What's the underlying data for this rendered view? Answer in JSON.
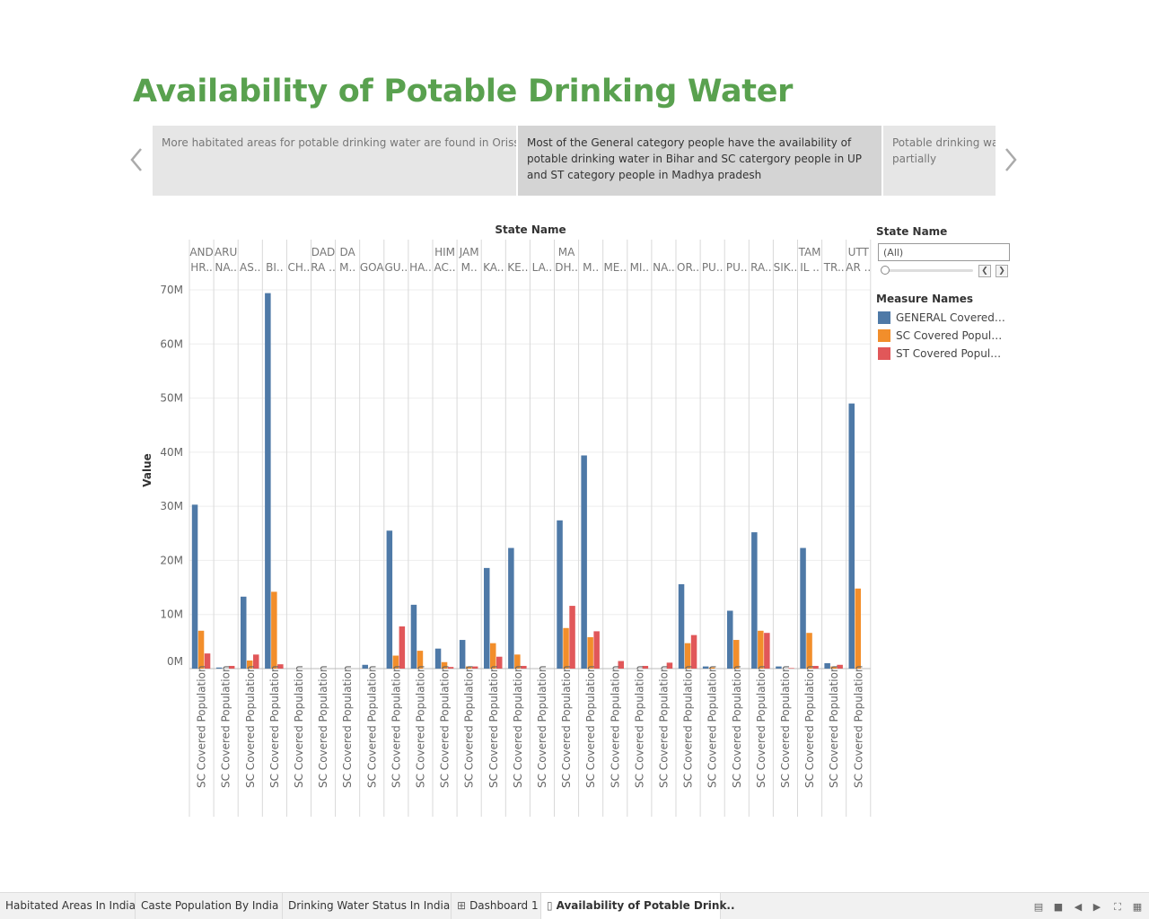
{
  "title": "Availability of Potable Drinking Water",
  "story": {
    "points": [
      "More habitated areas for potable drinking water are found in Orissa",
      "Most of the General category people have the availability of potable drinking water in Bihar and SC catergory people in UP and ST category people in Madhya pradesh",
      "Potable drinking water is available to most of the people and partially"
    ],
    "active_index": 1
  },
  "filter": {
    "title": "State Name",
    "value": "(All)"
  },
  "legend": {
    "title": "Measure Names",
    "items": [
      {
        "label": "GENERAL Covered Population",
        "color": "#4e79a7"
      },
      {
        "label": "SC Covered Population",
        "color": "#f28e2b"
      },
      {
        "label": "ST Covered Population",
        "color": "#e15759"
      }
    ]
  },
  "chart_data": {
    "type": "bar",
    "column_header": "State Name",
    "ylabel": "Value",
    "ylim": [
      0,
      72000000
    ],
    "yticks": [
      {
        "v": 0,
        "label": "0M"
      },
      {
        "v": 10000000,
        "label": "10M"
      },
      {
        "v": 20000000,
        "label": "20M"
      },
      {
        "v": 30000000,
        "label": "30M"
      },
      {
        "v": 40000000,
        "label": "40M"
      },
      {
        "v": 50000000,
        "label": "50M"
      },
      {
        "v": 60000000,
        "label": "60M"
      },
      {
        "v": 70000000,
        "label": "70M"
      }
    ],
    "category_header_lines": [
      [
        "AND",
        "HR.."
      ],
      [
        "ARU",
        "NA.."
      ],
      [
        "",
        "AS.."
      ],
      [
        "",
        "BI.."
      ],
      [
        "",
        "CH.."
      ],
      [
        "DAD",
        "RA .."
      ],
      [
        "DA",
        "M.."
      ],
      [
        "",
        "GOA"
      ],
      [
        "",
        "GU.."
      ],
      [
        "",
        "HA.."
      ],
      [
        "HIM",
        "AC.."
      ],
      [
        "JAM",
        "M.."
      ],
      [
        "",
        "KA.."
      ],
      [
        "",
        "KE.."
      ],
      [
        "",
        "LA.."
      ],
      [
        "MA",
        "DH.."
      ],
      [
        "",
        "M.."
      ],
      [
        "",
        "ME.."
      ],
      [
        "",
        "MI.."
      ],
      [
        "",
        "NA.."
      ],
      [
        "",
        "OR.."
      ],
      [
        "",
        "PU.."
      ],
      [
        "",
        "PU.."
      ],
      [
        "",
        "RA.."
      ],
      [
        "",
        "SIK.."
      ],
      [
        "TAM",
        "IL .."
      ],
      [
        "",
        "TR.."
      ],
      [
        "UTT",
        "AR .."
      ]
    ],
    "row_label": "SC Covered Population",
    "series": [
      {
        "name": "GENERAL Covered Population",
        "color": "#4e79a7",
        "values": [
          30300000,
          200000,
          13300000,
          69400000,
          0,
          0,
          0,
          700000,
          25500000,
          11800000,
          3700000,
          5300000,
          18600000,
          22300000,
          0,
          27400000,
          39400000,
          0,
          0,
          0,
          15600000,
          400000,
          10700000,
          25200000,
          400000,
          22300000,
          1000000,
          49000000
        ]
      },
      {
        "name": "SC Covered Population",
        "color": "#f28e2b",
        "values": [
          7000000,
          0,
          1500000,
          14200000,
          0,
          0,
          0,
          0,
          2400000,
          3300000,
          1200000,
          400000,
          4700000,
          2600000,
          0,
          7500000,
          5800000,
          0,
          0,
          0,
          4700000,
          200000,
          5300000,
          7000000,
          0,
          6600000,
          400000,
          14800000
        ]
      },
      {
        "name": "ST Covered Population",
        "color": "#e15759",
        "values": [
          2800000,
          500000,
          2600000,
          800000,
          0,
          0,
          0,
          0,
          7800000,
          0,
          300000,
          400000,
          2200000,
          500000,
          0,
          11600000,
          6900000,
          1400000,
          500000,
          1100000,
          6200000,
          0,
          0,
          6600000,
          100000,
          500000,
          700000,
          0
        ]
      }
    ]
  },
  "tabs": [
    {
      "label": "Habitated Areas In India",
      "icon": ""
    },
    {
      "label": "Caste Population By  India",
      "icon": ""
    },
    {
      "label": "Drinking Water Status In India",
      "icon": ""
    },
    {
      "label": "Dashboard 1",
      "icon": "dashboard-icon"
    },
    {
      "label": "Availability of Potable Drink..",
      "icon": "story-icon"
    }
  ],
  "active_tab": 4
}
